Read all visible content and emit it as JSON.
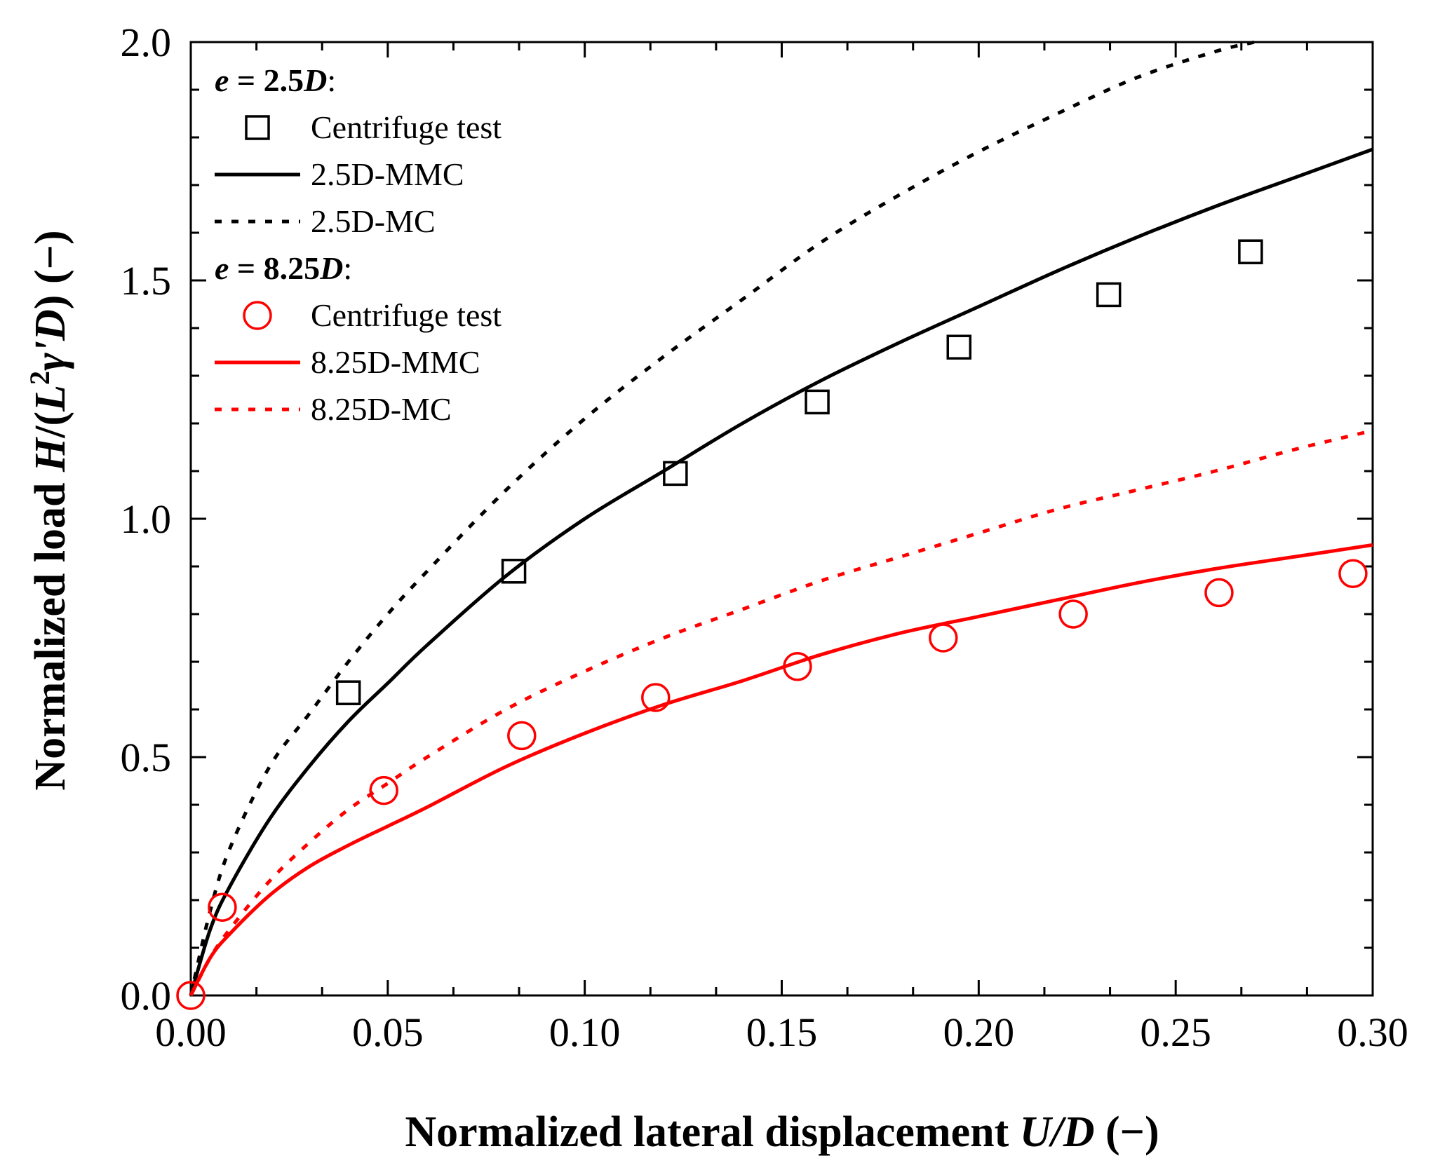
{
  "chart_data": {
    "type": "scatter",
    "xlabel": {
      "prefix": "Normalized lateral displacement ",
      "var": "U/D",
      "suffix": " (−)"
    },
    "ylabel": {
      "prefix": "Normalized load ",
      "var1": "H",
      "mid1": "/(",
      "var2": "L",
      "sup": "2",
      "var3": "γ'D",
      "mid2": ")",
      "suffix": " (−)"
    },
    "xlim": [
      0,
      0.3
    ],
    "ylim": [
      0,
      2.0
    ],
    "x_ticks": [
      "0.00",
      "0.05",
      "0.10",
      "0.15",
      "0.20",
      "0.25",
      "0.30"
    ],
    "y_ticks": [
      "0.0",
      "0.5",
      "1.0",
      "1.5",
      "2.0"
    ],
    "grid": false,
    "legend_position": "top-left",
    "legend_groups": [
      {
        "heading": {
          "var": "e",
          "eq": " = 2.5",
          "unit": "D",
          "colon": ":"
        },
        "entries": [
          0,
          1,
          2
        ]
      },
      {
        "heading": {
          "var": "e",
          "eq": " = 8.25",
          "unit": "D",
          "colon": ":"
        },
        "entries": [
          3,
          4,
          5
        ]
      }
    ],
    "series": [
      {
        "name": "Centrifuge test",
        "kind": "scatter",
        "marker": "square",
        "color": "#000000",
        "x": [
          0.04,
          0.082,
          0.123,
          0.159,
          0.195,
          0.233,
          0.269
        ],
        "y": [
          0.635,
          0.89,
          1.095,
          1.245,
          1.36,
          1.47,
          1.56
        ]
      },
      {
        "name": "2.5D-MMC",
        "kind": "line",
        "dash": "solid",
        "color": "#000000",
        "x": [
          0,
          0.005,
          0.01,
          0.02,
          0.03,
          0.04,
          0.05,
          0.06,
          0.08,
          0.1,
          0.12,
          0.14,
          0.16,
          0.18,
          0.2,
          0.22,
          0.24,
          0.26,
          0.28,
          0.3
        ],
        "y": [
          0,
          0.14,
          0.23,
          0.37,
          0.48,
          0.575,
          0.655,
          0.735,
          0.88,
          1.0,
          1.1,
          1.2,
          1.29,
          1.37,
          1.445,
          1.52,
          1.59,
          1.655,
          1.715,
          1.775
        ]
      },
      {
        "name": "2.5D-MC",
        "kind": "line",
        "dash": "dotted",
        "color": "#000000",
        "x": [
          0,
          0.005,
          0.01,
          0.02,
          0.03,
          0.04,
          0.05,
          0.06,
          0.08,
          0.1,
          0.12,
          0.14,
          0.16,
          0.18,
          0.2,
          0.22,
          0.24,
          0.26,
          0.27
        ],
        "y": [
          0,
          0.18,
          0.31,
          0.48,
          0.59,
          0.7,
          0.8,
          0.89,
          1.06,
          1.21,
          1.34,
          1.46,
          1.58,
          1.68,
          1.77,
          1.85,
          1.925,
          1.98,
          2.0
        ]
      },
      {
        "name": "Centrifuge test",
        "kind": "scatter",
        "marker": "circle",
        "color": "#ff0000",
        "x": [
          0.0,
          0.008,
          0.049,
          0.084,
          0.118,
          0.154,
          0.191,
          0.224,
          0.261,
          0.295
        ],
        "y": [
          0.0,
          0.185,
          0.43,
          0.545,
          0.625,
          0.69,
          0.75,
          0.8,
          0.845,
          0.885
        ]
      },
      {
        "name": "8.25D-MMC",
        "kind": "line",
        "dash": "solid",
        "color": "#ff0000",
        "x": [
          0,
          0.005,
          0.01,
          0.02,
          0.03,
          0.04,
          0.05,
          0.06,
          0.08,
          0.1,
          0.12,
          0.14,
          0.16,
          0.18,
          0.2,
          0.22,
          0.24,
          0.26,
          0.28,
          0.3
        ],
        "y": [
          0,
          0.08,
          0.13,
          0.21,
          0.27,
          0.315,
          0.355,
          0.395,
          0.48,
          0.55,
          0.61,
          0.66,
          0.715,
          0.76,
          0.795,
          0.83,
          0.865,
          0.895,
          0.92,
          0.945
        ]
      },
      {
        "name": "8.25D-MC",
        "kind": "line",
        "dash": "dotted",
        "color": "#ff0000",
        "x": [
          0,
          0.005,
          0.01,
          0.02,
          0.03,
          0.04,
          0.05,
          0.06,
          0.08,
          0.1,
          0.12,
          0.14,
          0.16,
          0.18,
          0.2,
          0.22,
          0.24,
          0.26,
          0.28,
          0.3
        ],
        "y": [
          0,
          0.08,
          0.14,
          0.24,
          0.32,
          0.39,
          0.445,
          0.5,
          0.6,
          0.68,
          0.75,
          0.81,
          0.87,
          0.92,
          0.97,
          1.02,
          1.06,
          1.1,
          1.145,
          1.185
        ]
      }
    ]
  }
}
